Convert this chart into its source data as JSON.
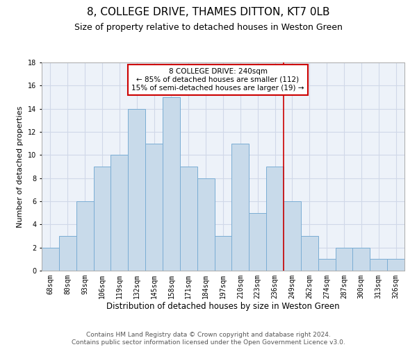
{
  "title": "8, COLLEGE DRIVE, THAMES DITTON, KT7 0LB",
  "subtitle": "Size of property relative to detached houses in Weston Green",
  "xlabel": "Distribution of detached houses by size in Weston Green",
  "ylabel": "Number of detached properties",
  "categories": [
    "68sqm",
    "80sqm",
    "93sqm",
    "106sqm",
    "119sqm",
    "132sqm",
    "145sqm",
    "158sqm",
    "171sqm",
    "184sqm",
    "197sqm",
    "210sqm",
    "223sqm",
    "236sqm",
    "249sqm",
    "262sqm",
    "274sqm",
    "287sqm",
    "300sqm",
    "313sqm",
    "326sqm"
  ],
  "values": [
    2,
    3,
    6,
    9,
    10,
    14,
    11,
    15,
    9,
    8,
    3,
    11,
    5,
    9,
    6,
    3,
    1,
    2,
    2,
    1,
    1
  ],
  "bar_color": "#c8daea",
  "bar_edge_color": "#7aadd4",
  "ref_line_color": "#cc0000",
  "ref_line_x": 13.5,
  "annotation_text": "8 COLLEGE DRIVE: 240sqm\n← 85% of detached houses are smaller (112)\n15% of semi-detached houses are larger (19) →",
  "annotation_box_color": "#cc0000",
  "ylim": [
    0,
    18
  ],
  "yticks": [
    0,
    2,
    4,
    6,
    8,
    10,
    12,
    14,
    16,
    18
  ],
  "grid_color": "#d0d8e8",
  "background_color": "#edf2f9",
  "footer": "Contains HM Land Registry data © Crown copyright and database right 2024.\nContains public sector information licensed under the Open Government Licence v3.0.",
  "title_fontsize": 11,
  "subtitle_fontsize": 9,
  "xlabel_fontsize": 8.5,
  "ylabel_fontsize": 8,
  "tick_fontsize": 7,
  "annotation_fontsize": 7.5,
  "footer_fontsize": 6.5
}
